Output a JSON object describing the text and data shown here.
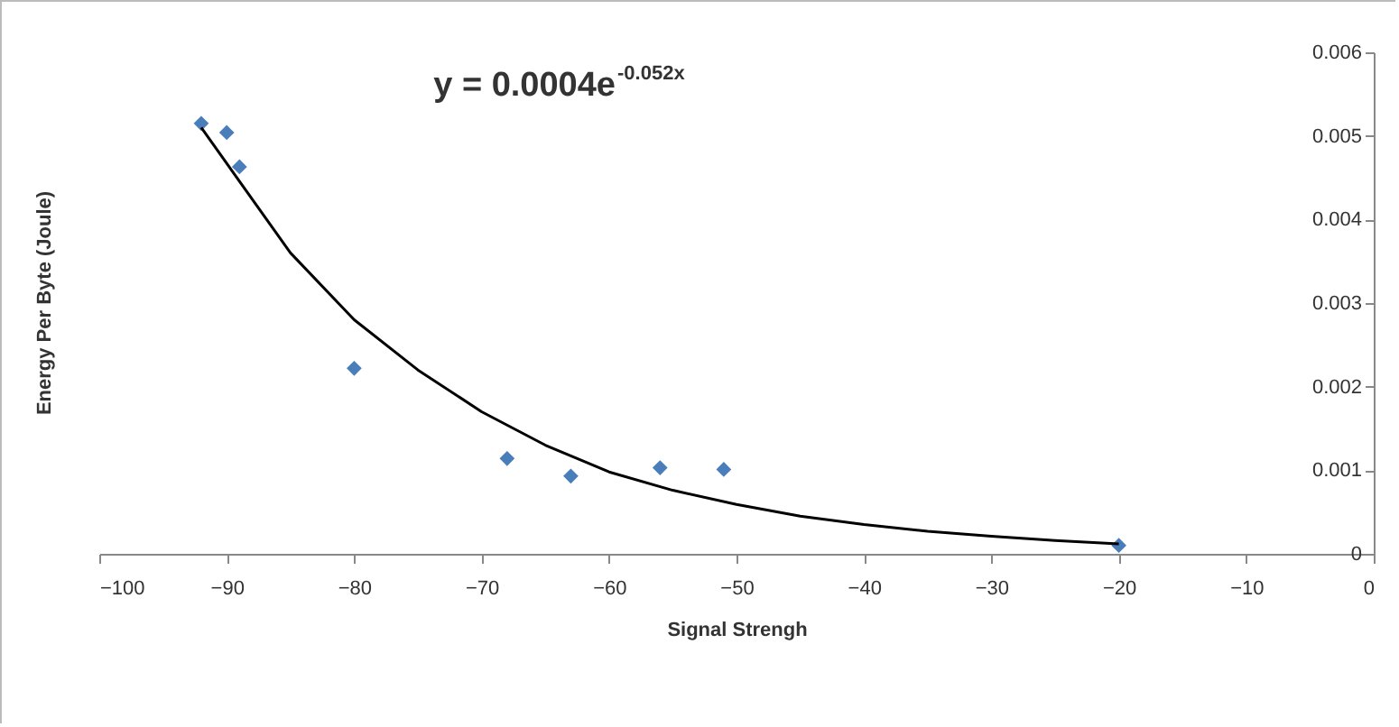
{
  "chart_data": {
    "type": "scatter",
    "xlabel": "Signal Strengh",
    "ylabel": "Energy Per Byte (Joule)",
    "marker": "diamond",
    "xlim": [
      -100,
      0
    ],
    "xticks": [
      -100,
      -90,
      -80,
      -70,
      -60,
      -50,
      -40,
      -30,
      -20,
      -10,
      0
    ],
    "ylim": [
      0,
      0.006
    ],
    "yticks": [
      0,
      0.001,
      0.002,
      0.003,
      0.004,
      0.005,
      0.006
    ],
    "annotations": [
      "y = 0.0004e$^{-0.052x}$"
    ],
    "series": [
      {
        "color": "#4a7ebb",
        "x": [
          -92,
          -90,
          -89,
          -80,
          -68,
          -63,
          -56,
          -51,
          -20
        ],
        "values": [
          0.00515,
          0.00504,
          0.00463,
          0.00222,
          0.00114,
          0.00093,
          0.00103,
          0.00101,
          0.0001
        ]
      },
      {
        "type": "line",
        "marker": "none",
        "color": "#000000",
        "x": [
          -92,
          -85,
          -80,
          -75,
          -70,
          -65,
          -60,
          -55,
          -50,
          -45,
          -40,
          -35,
          -30,
          -25,
          -20
        ],
        "values": [
          0.0051,
          0.0036,
          0.0028,
          0.0022,
          0.0017,
          0.0013,
          0.00098,
          0.00076,
          0.00059,
          0.00045,
          0.00035,
          0.00027,
          0.00021,
          0.00016,
          0.00012
        ]
      }
    ]
  }
}
